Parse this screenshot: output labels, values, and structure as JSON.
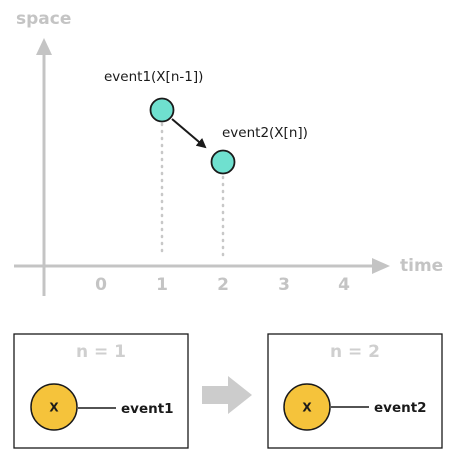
{
  "chart": {
    "y_axis_title": "space",
    "x_axis_title": "time",
    "ticks": [
      "0",
      "1",
      "2",
      "3",
      "4"
    ],
    "events": [
      {
        "label": "event1(X[n-1])",
        "time": 1,
        "level": 2
      },
      {
        "label": "event2(X[n])",
        "time": 2,
        "level": 1.5
      }
    ]
  },
  "states": [
    {
      "title": "n = 1",
      "node_letter": "X",
      "event": "event1"
    },
    {
      "title": "n = 2",
      "node_letter": "X",
      "event": "event2"
    }
  ],
  "colors": {
    "axis": "#c4c4c4",
    "event_fill": "#6fe0cf",
    "node_fill": "#f5c33b",
    "outline": "#1a1a1a",
    "transition_arrow": "#cccccc",
    "guide_dots": "#c8c8c8"
  },
  "icons": {
    "transition": "right-arrow-icon"
  }
}
